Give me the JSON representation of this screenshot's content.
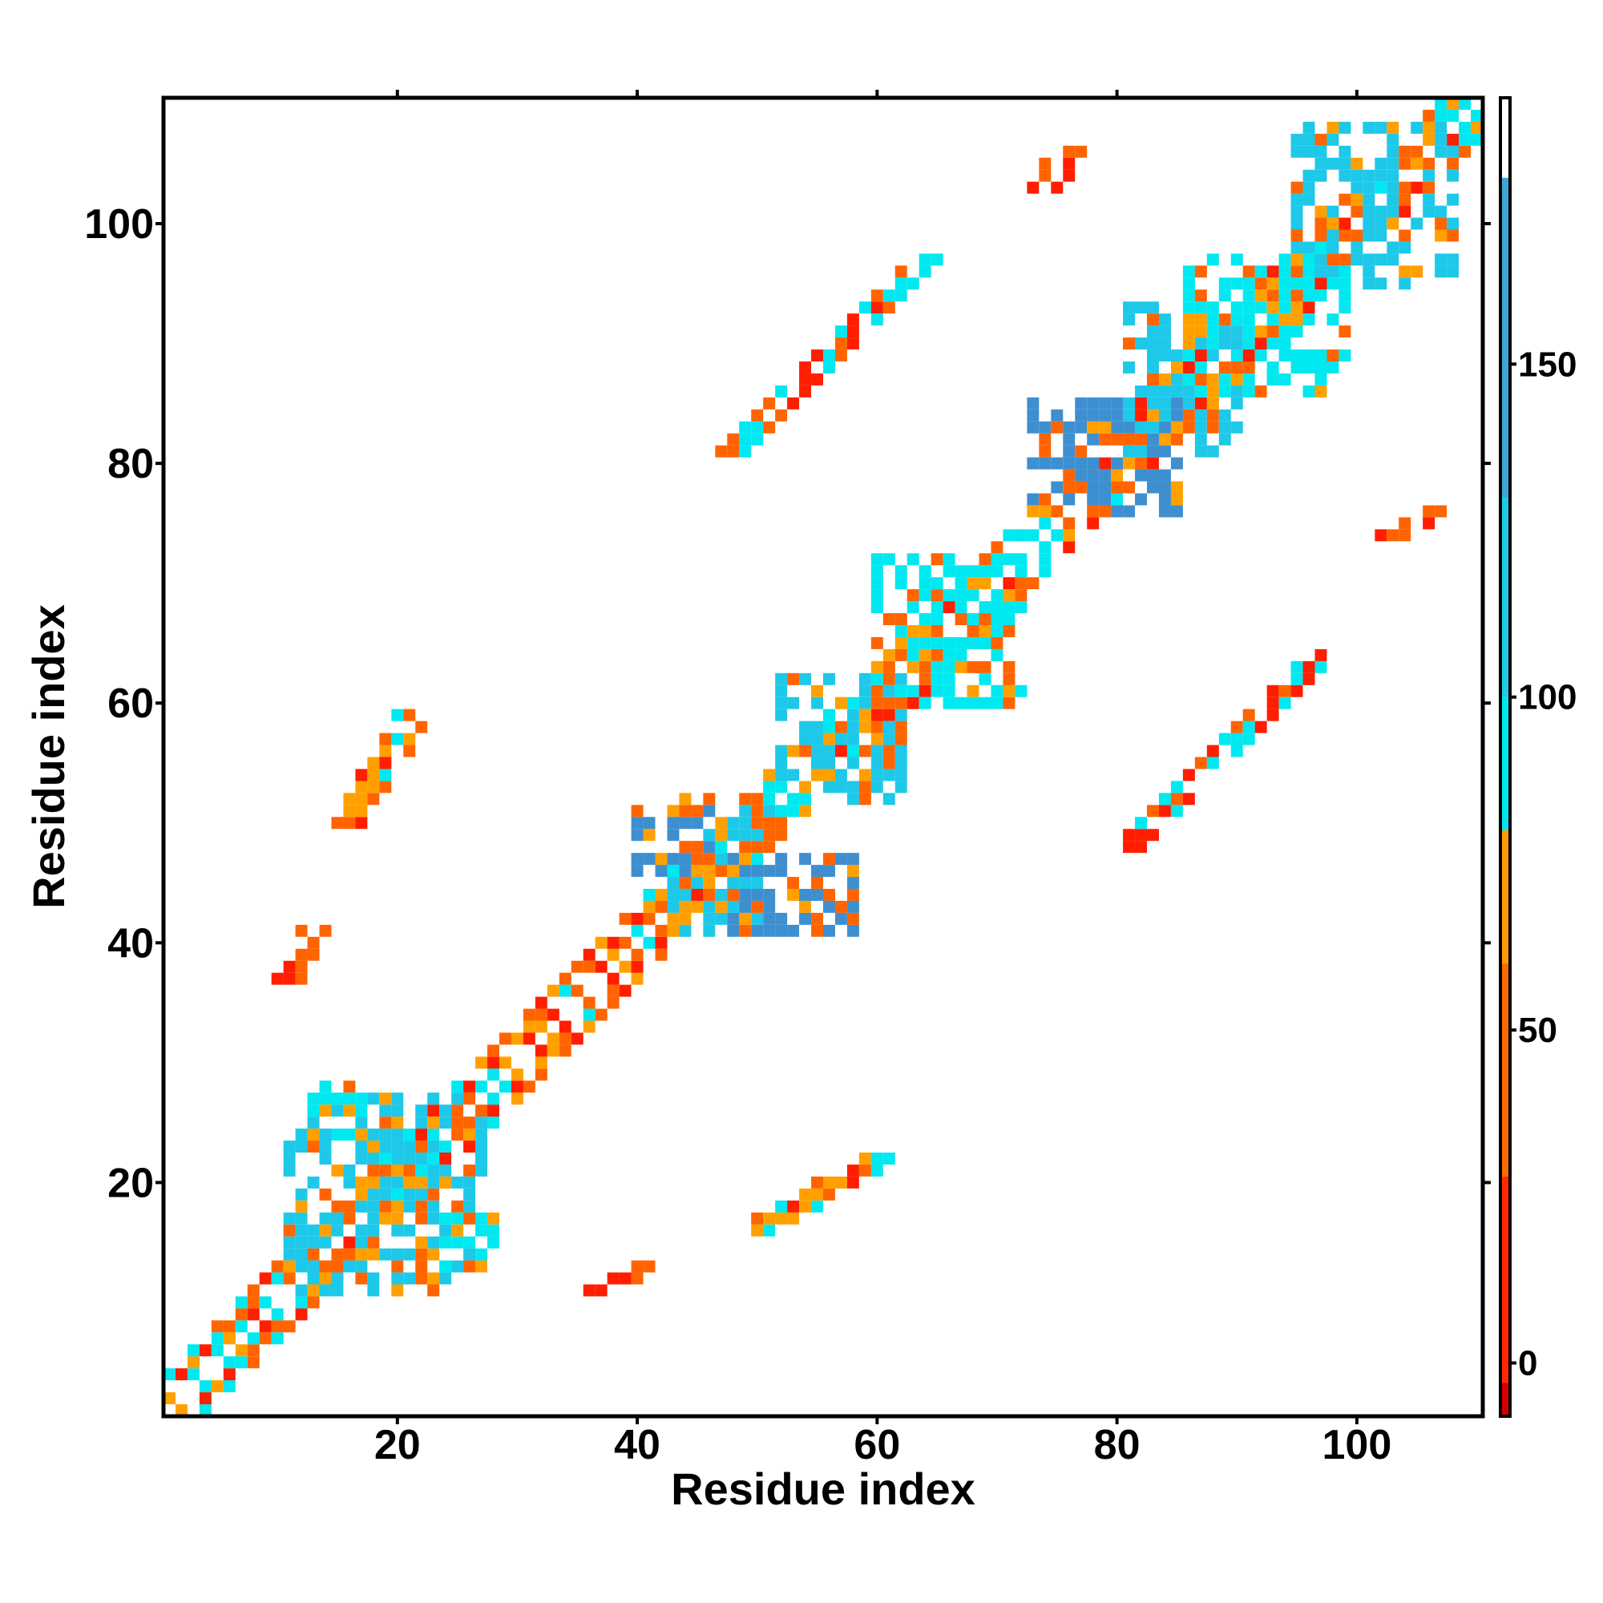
{
  "chart_data": {
    "type": "heatmap",
    "title": "",
    "xlabel": "Residue index",
    "ylabel": "Residue index",
    "xlim": [
      1,
      110
    ],
    "ylim": [
      1,
      110
    ],
    "x_ticks": [
      20,
      40,
      60,
      80,
      100
    ],
    "y_ticks": [
      20,
      40,
      60,
      80,
      100
    ],
    "colorbar": {
      "range": [
        -8,
        190
      ],
      "ticks": [
        0,
        50,
        100,
        150
      ],
      "bands": [
        {
          "from": -8,
          "to": -3,
          "color": "#d40000"
        },
        {
          "from": -3,
          "to": 28,
          "color": "#ff2a00"
        },
        {
          "from": 28,
          "to": 60,
          "color": "#ff6a00"
        },
        {
          "from": 60,
          "to": 80,
          "color": "#ff9d00"
        },
        {
          "from": 80,
          "to": 100,
          "color": "#00e5ef"
        },
        {
          "from": 100,
          "to": 130,
          "color": "#1fcbe6"
        },
        {
          "from": 130,
          "to": 178,
          "color": "#3aa8d8"
        },
        {
          "from": 178,
          "to": 190,
          "color": "#ffffff"
        }
      ]
    },
    "cell_colors": {
      "red": "#ff1e00",
      "orange": "#ff6400",
      "amber": "#ffa000",
      "cyan": "#00e8f0",
      "sky": "#1ec8e8",
      "steel": "#3e8fd0"
    },
    "diagonal": {
      "band_halfwidth": 3,
      "note_range": [
        1,
        110
      ]
    },
    "contact_regions": [
      {
        "x": [
          11,
          27
        ],
        "y": [
          11,
          27
        ],
        "level": "sky"
      },
      {
        "x": [
          13,
          17
        ],
        "y": [
          24,
          28
        ],
        "level": "cyan"
      },
      {
        "x": [
          24,
          28
        ],
        "y": [
          13,
          17
        ],
        "level": "cyan"
      },
      {
        "x": [
          43,
          51
        ],
        "y": [
          41,
          51
        ],
        "level": "sky"
      },
      {
        "x": [
          48,
          58
        ],
        "y": [
          41,
          47
        ],
        "level": "steel"
      },
      {
        "x": [
          40,
          46
        ],
        "y": [
          46,
          52
        ],
        "level": "steel"
      },
      {
        "x": [
          52,
          62
        ],
        "y": [
          52,
          62
        ],
        "level": "sky"
      },
      {
        "x": [
          60,
          72
        ],
        "y": [
          60,
          72
        ],
        "level": "cyan"
      },
      {
        "x": [
          73,
          85
        ],
        "y": [
          76,
          85
        ],
        "level": "steel"
      },
      {
        "x": [
          81,
          90
        ],
        "y": [
          81,
          93
        ],
        "level": "sky"
      },
      {
        "x": [
          86,
          99
        ],
        "y": [
          86,
          97
        ],
        "level": "cyan"
      },
      {
        "x": [
          95,
          108
        ],
        "y": [
          95,
          108
        ],
        "level": "sky"
      }
    ],
    "off_diagonal_strands": [
      {
        "x": [
          50,
          60
        ],
        "y": [
          16,
          22
        ],
        "levels": [
          "red",
          "orange",
          "amber",
          "cyan"
        ]
      },
      {
        "x": [
          16,
          22
        ],
        "y": [
          50,
          60
        ],
        "levels": [
          "red",
          "orange",
          "amber",
          "cyan"
        ]
      },
      {
        "x": [
          48,
          64
        ],
        "y": [
          81,
          97
        ],
        "levels": [
          "red",
          "orange",
          "cyan"
        ]
      },
      {
        "x": [
          81,
          97
        ],
        "y": [
          48,
          64
        ],
        "levels": [
          "red",
          "orange",
          "cyan"
        ]
      },
      {
        "x": [
          37,
          41
        ],
        "y": [
          11,
          13
        ],
        "levels": [
          "red",
          "orange"
        ]
      },
      {
        "x": [
          11,
          13
        ],
        "y": [
          37,
          41
        ],
        "levels": [
          "red",
          "orange"
        ]
      },
      {
        "x": [
          103,
          106
        ],
        "y": [
          74,
          76
        ],
        "levels": [
          "red",
          "orange"
        ]
      },
      {
        "x": [
          74,
          76
        ],
        "y": [
          103,
          106
        ],
        "levels": [
          "red",
          "orange"
        ]
      }
    ]
  }
}
